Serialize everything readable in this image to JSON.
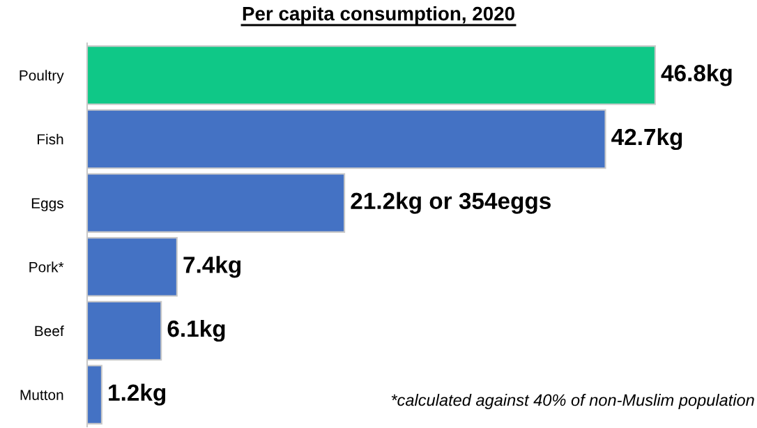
{
  "chart_data": {
    "type": "bar",
    "orientation": "horizontal",
    "title": "Per capita consumption, 2020",
    "categories": [
      "Poultry",
      "Fish",
      "Eggs",
      "Pork*",
      "Beef",
      "Mutton"
    ],
    "values": [
      46.8,
      42.7,
      21.2,
      7.4,
      6.1,
      1.2
    ],
    "colors": [
      "#0fc887",
      "#4472c4",
      "#4472c4",
      "#4472c4",
      "#4472c4",
      "#4472c4"
    ],
    "value_labels": [
      "46.8kg",
      "42.7kg",
      "21.2kg or 354eggs",
      "7.4kg",
      "6.1kg",
      "1.2kg"
    ],
    "annotations": [
      "*calculated against 40% of non-Muslim population"
    ],
    "tick_labels": "y",
    "grid": false,
    "legend": false
  }
}
